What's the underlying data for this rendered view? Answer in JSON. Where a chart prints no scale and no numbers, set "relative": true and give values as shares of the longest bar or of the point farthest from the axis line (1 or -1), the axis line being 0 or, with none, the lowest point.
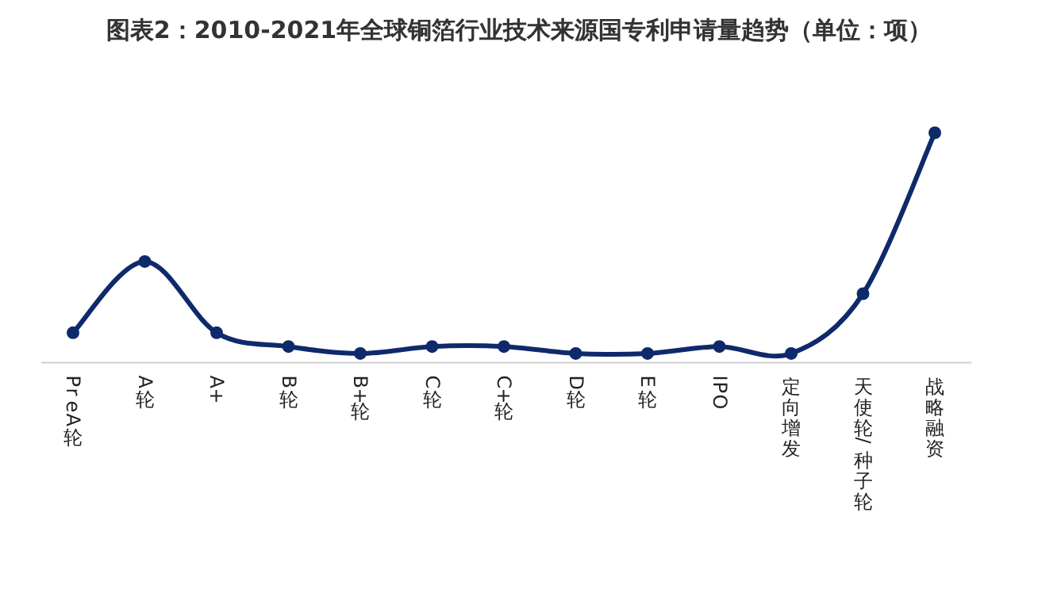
{
  "chart_data": {
    "type": "line",
    "title": "图表2：2010-2021年全球铜箔行业技术来源国专利申请量趋势（单位：项）",
    "relative": true,
    "marker": "circle",
    "grid": false,
    "legend": false,
    "categories": [
      "PreA轮",
      "A轮",
      "A+",
      "B轮",
      "B+轮",
      "C轮",
      "C+轮",
      "D轮",
      "E轮",
      "IPO",
      "定向增发",
      "天使轮/种子轮",
      "战略融资"
    ],
    "series": [
      {
        "color": "#0e2a6b",
        "values": [
          0.13,
          0.44,
          0.13,
          0.07,
          0.04,
          0.07,
          0.07,
          0.04,
          0.04,
          0.07,
          0.04,
          0.3,
          1
        ]
      }
    ]
  }
}
